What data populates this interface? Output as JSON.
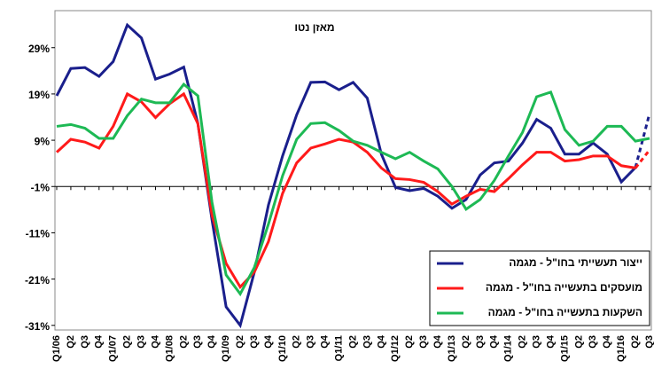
{
  "chart_data": {
    "type": "line",
    "title": "מאזן נטו",
    "categories": [
      "Q1/06",
      "Q2",
      "Q3",
      "Q4",
      "Q1/07",
      "Q2",
      "Q3",
      "Q4",
      "Q1/08",
      "Q2",
      "Q3",
      "Q4",
      "Q1/09",
      "Q2",
      "Q3",
      "Q4",
      "Q1/10",
      "Q2",
      "Q3",
      "Q4",
      "Q1/11",
      "Q2",
      "Q3",
      "Q4",
      "Q1/12",
      "Q2",
      "Q3",
      "Q4",
      "Q1/13",
      "Q2",
      "Q3",
      "Q4",
      "Q1/14",
      "Q2",
      "Q3",
      "Q4",
      "Q1/15",
      "Q2",
      "Q3",
      "Q4",
      "Q1/16",
      "Q2",
      "Q3"
    ],
    "series": [
      {
        "name": "ייצור תעשייתי בחו\"ל - מגמה",
        "color": "#1a1f8c",
        "dashed_last_segment": true,
        "values": [
          18.6,
          24.5,
          24.7,
          22.8,
          26,
          33.9,
          31.1,
          22.2,
          23.3,
          24.8,
          12.6,
          -8.2,
          -27,
          -31,
          -19.5,
          -5,
          5.6,
          14.5,
          21.5,
          21.6,
          19.9,
          21.5,
          18.1,
          6,
          -1.2,
          -1.9,
          -1.4,
          -3.1,
          -5.7,
          -3.8,
          1.5,
          4.1,
          4.5,
          8.4,
          13.5,
          11.6,
          6,
          6,
          8.4,
          6,
          0,
          3.1,
          14.8
        ]
      },
      {
        "name": "מועסקים בתעשייה בחו\"ל - מגמה",
        "color": "#ff1a1a",
        "dashed_last_segment": true,
        "values": [
          6.4,
          9.2,
          8.6,
          7.3,
          12,
          19,
          17.3,
          13.9,
          16.9,
          19,
          12.6,
          -7.2,
          -17.6,
          -22.7,
          -19.5,
          -12.9,
          -2.5,
          4.1,
          7.3,
          8.2,
          9.2,
          8.6,
          6.4,
          3,
          0.7,
          0.5,
          -0.1,
          -2.1,
          -4.8,
          -3.1,
          -1.6,
          -2.1,
          0.7,
          3.7,
          6.4,
          6.4,
          4.5,
          4.8,
          5.6,
          5.6,
          3.5,
          3,
          6.9
        ]
      },
      {
        "name": "השקעות בתעשייה בחו\"ל - מגמה",
        "color": "#1db954",
        "dashed_last_segment": false,
        "values": [
          12,
          12.4,
          11.6,
          9.4,
          9.4,
          14.3,
          17.9,
          17.1,
          17.1,
          21.1,
          18.6,
          -4.4,
          -20.1,
          -24.2,
          -18.5,
          -9.1,
          1.3,
          9.2,
          12.6,
          12.8,
          11.1,
          8.8,
          7.9,
          6.4,
          5,
          6.4,
          4.5,
          2.8,
          -1,
          -5.9,
          -3.8,
          0.3,
          5.6,
          10.7,
          18.4,
          19.4,
          11.3,
          7.9,
          8.8,
          12,
          12,
          8.8,
          9.4
        ]
      }
    ],
    "ylim": [
      -32,
      37
    ],
    "yticks": [
      {
        "value": -31,
        "label": "-31%"
      },
      {
        "value": -21,
        "label": "-21%"
      },
      {
        "value": -11,
        "label": "-11%"
      },
      {
        "value": -1,
        "label": "-1%"
      },
      {
        "value": 9,
        "label": "9%"
      },
      {
        "value": 19,
        "label": "19%"
      },
      {
        "value": 29,
        "label": "29%"
      }
    ],
    "x_axis_crosses": -1,
    "grid": false,
    "legend": "lower right"
  }
}
